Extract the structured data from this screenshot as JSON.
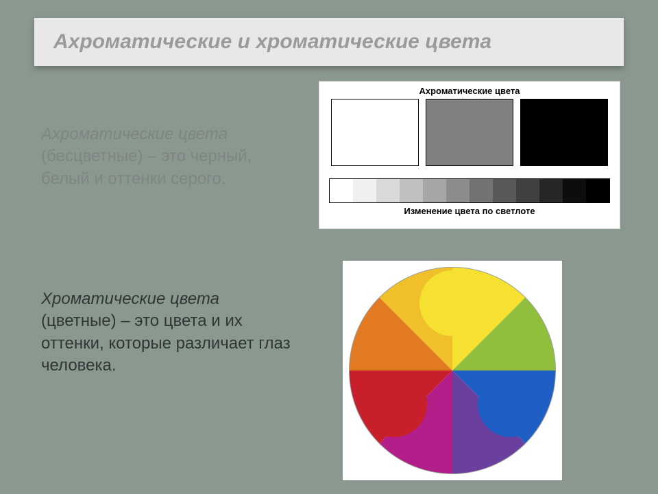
{
  "title": "Ахроматические и хроматические цвета",
  "paragraph1_lead": "Ахроматические цвета",
  "paragraph1_rest": " (бесцветные) – это черный, белый и оттенки серого.",
  "paragraph2_lead": "Хроматические цвета",
  "paragraph2_rest": " (цветные) – это цвета и их оттенки, которые различает глаз человека.",
  "achromatic": {
    "label": "Ахроматические цвета",
    "swatches": [
      "#ffffff",
      "#808080",
      "#000000"
    ],
    "gradient": [
      "#ffffff",
      "#f0f0f0",
      "#d9d9d9",
      "#bfbfbf",
      "#a6a6a6",
      "#8c8c8c",
      "#737373",
      "#595959",
      "#404040",
      "#262626",
      "#0d0d0d",
      "#000000"
    ],
    "gradient_label": "Изменение цвета по светлоте",
    "border_color": "#000000",
    "background": "#ffffff"
  },
  "wheel": {
    "background": "#ffffff",
    "circle_fill": "#ffffff",
    "circle_stroke": "#9a9a9a",
    "slice_colors": [
      "#f6e030",
      "#8fbf3c",
      "#1f5fc5",
      "#6a3f9e",
      "#b21f8a",
      "#c8202a",
      "#e27a23",
      "#efc02a"
    ],
    "node_colors": {
      "top": "#f6e030",
      "right": "#1f5fc5",
      "left": "#c8202a"
    },
    "panel_background": "#ffffff"
  },
  "slide_background": "#8a988f",
  "title_bar_background": "#e8e8e8",
  "title_color": "#9a9a9a"
}
